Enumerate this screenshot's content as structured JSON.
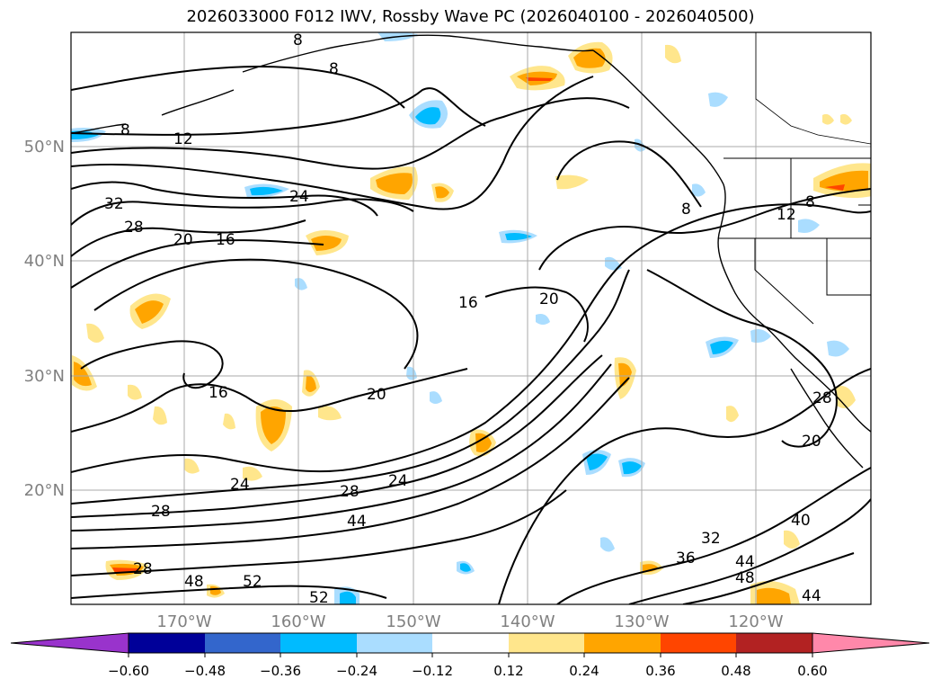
{
  "title": "2026033000 F012 IWV, Rossby Wave PC (2026040100 - 2026040500)",
  "lat_labels": [
    "50°N",
    "40°N",
    "30°N",
    "20°N"
  ],
  "lon_labels": [
    "170°W",
    "160°W",
    "150°W",
    "140°W",
    "130°W",
    "120°W"
  ],
  "contour_labels": {
    "c12": "12",
    "c8a": "8",
    "c8b": "8",
    "c8c": "8",
    "c8d": "8",
    "c8e": "8",
    "c12b": "12",
    "c32": "32",
    "c28": "28",
    "c24a": "24",
    "c20a": "20",
    "c16a": "16",
    "c16b": "16",
    "c20b": "20",
    "c16c": "16",
    "c20c": "20",
    "c24b": "24",
    "c28b": "28",
    "c28c": "28",
    "c44": "44",
    "c48": "48",
    "c52": "52",
    "c52b": "52",
    "c36": "36",
    "c32b": "32",
    "c40": "40",
    "c44b": "44",
    "c48b": "48",
    "c44c": "44",
    "c28d": "28",
    "c20d": "20",
    "c24c": "24",
    "c28e": "28"
  },
  "colorbar": {
    "ticks": [
      "−0.60",
      "−0.48",
      "−0.36",
      "−0.24",
      "−0.12",
      "0.12",
      "0.24",
      "0.36",
      "0.48",
      "0.60"
    ],
    "colors": [
      "#9933cc",
      "#000099",
      "#3366cc",
      "#00bbff",
      "#aaddff",
      "#ffffff",
      "#ffe68c",
      "#ffa500",
      "#ff4500",
      "#b22222",
      "#ff88aa"
    ]
  },
  "colors": {
    "grid": "#aaaaaa",
    "contour": "#000000",
    "axis_label": "#808080"
  }
}
